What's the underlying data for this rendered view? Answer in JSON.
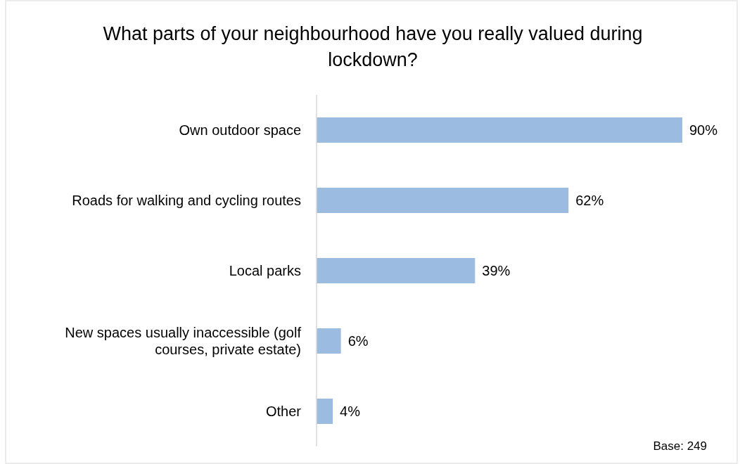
{
  "chart_data": {
    "type": "bar",
    "orientation": "horizontal",
    "title": "What parts of your neighbourhood have you really valued during lockdown?",
    "categories": [
      "Own outdoor space",
      "Roads for walking and cycling routes",
      "Local parks",
      "New spaces usually inaccessible (golf courses, private estate)",
      "Other"
    ],
    "values": [
      90,
      62,
      39,
      6,
      4
    ],
    "value_labels": [
      "90%",
      "62%",
      "39%",
      "6%",
      "4%"
    ],
    "color": "#9bbbe0",
    "annotations": [
      "Base: 249"
    ]
  }
}
